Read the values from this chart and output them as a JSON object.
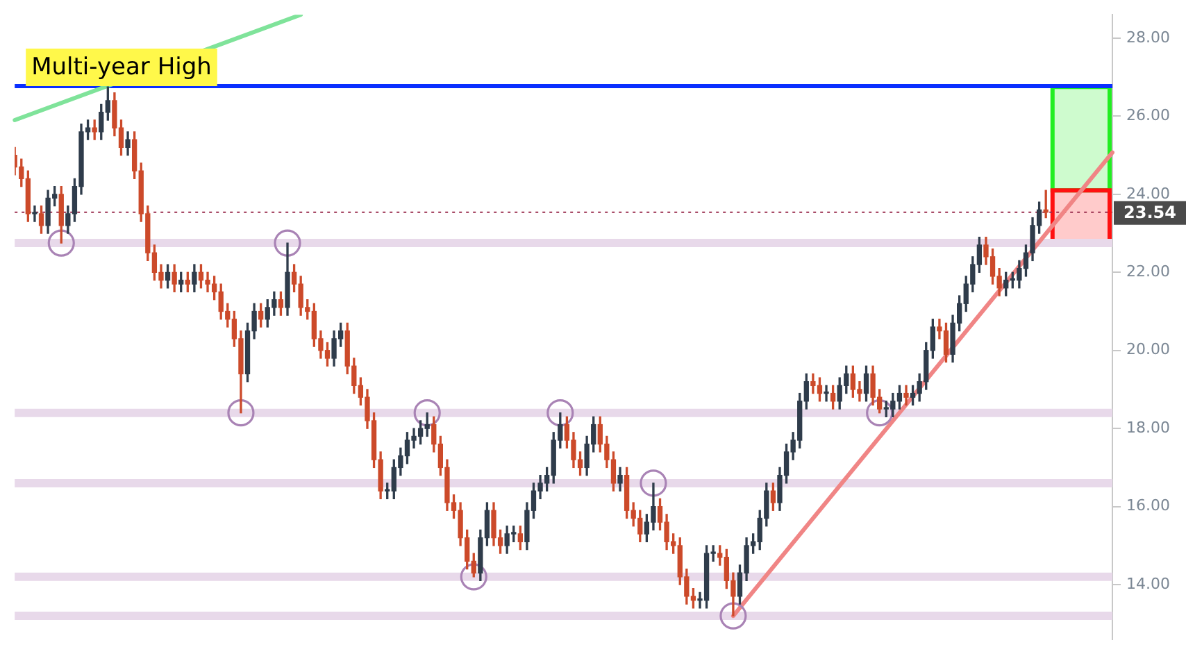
{
  "chart_data": {
    "type": "candlestick",
    "categories": [
      null,
      null,
      null,
      null,
      null,
      null,
      null,
      null,
      null,
      null,
      null,
      null,
      null,
      null,
      null,
      null,
      null,
      null,
      null,
      null,
      null,
      null,
      null,
      null,
      null,
      null,
      null,
      null,
      null,
      null,
      null,
      null,
      null,
      null,
      null,
      null,
      null,
      null,
      null,
      null,
      null,
      null,
      null,
      null,
      null,
      null,
      null,
      null,
      null,
      null,
      null,
      null,
      null,
      null,
      null,
      null,
      null,
      null,
      null,
      null,
      null,
      null,
      null,
      null,
      null,
      null,
      null,
      null,
      null,
      null,
      null,
      null,
      null,
      null,
      null,
      null,
      null,
      null,
      null,
      null,
      null,
      null,
      null,
      null,
      null,
      null,
      null,
      null,
      null,
      null,
      null,
      null,
      null,
      null,
      null,
      null,
      null,
      null,
      null,
      null,
      null,
      null,
      null,
      null,
      null,
      null,
      null,
      null,
      null,
      null,
      null,
      null,
      null,
      null,
      null,
      null,
      null,
      null,
      null,
      null,
      null,
      null,
      null,
      null,
      null,
      null,
      null,
      null,
      null,
      null,
      null,
      null,
      null,
      null,
      null,
      null,
      null,
      null,
      null,
      null,
      null,
      null,
      null,
      null,
      null,
      null,
      null,
      null,
      null,
      null,
      null,
      null,
      null,
      null,
      null,
      null,
      null,
      null,
      null,
      null,
      null,
      null,
      null,
      null,
      null,
      null
    ],
    "ohlc": [
      [
        25.0,
        25.2,
        24.5,
        24.7
      ],
      [
        24.7,
        24.9,
        24.2,
        24.4
      ],
      [
        24.4,
        24.6,
        23.3,
        23.5
      ],
      [
        23.5,
        23.7,
        23.3,
        23.5
      ],
      [
        23.5,
        23.7,
        23.0,
        23.2
      ],
      [
        23.2,
        24.1,
        23.0,
        23.9
      ],
      [
        23.9,
        24.2,
        23.7,
        24.0
      ],
      [
        24.0,
        24.2,
        22.75,
        23.2
      ],
      [
        23.2,
        23.7,
        23.0,
        23.5
      ],
      [
        23.5,
        24.4,
        23.3,
        24.2
      ],
      [
        24.2,
        25.8,
        24.0,
        25.6
      ],
      [
        25.6,
        25.9,
        25.4,
        25.7
      ],
      [
        25.7,
        25.9,
        25.4,
        25.6
      ],
      [
        25.6,
        26.3,
        25.4,
        26.1
      ],
      [
        26.1,
        26.75,
        25.9,
        26.4
      ],
      [
        26.4,
        26.6,
        25.5,
        25.7
      ],
      [
        25.7,
        25.9,
        25.0,
        25.2
      ],
      [
        25.2,
        25.6,
        25.0,
        25.4
      ],
      [
        25.4,
        25.6,
        24.4,
        24.6
      ],
      [
        24.6,
        24.8,
        23.3,
        23.5
      ],
      [
        23.5,
        23.7,
        22.3,
        22.5
      ],
      [
        22.5,
        22.7,
        21.8,
        22.0
      ],
      [
        22.0,
        22.2,
        21.6,
        21.8
      ],
      [
        21.8,
        22.2,
        21.6,
        22.0
      ],
      [
        22.0,
        22.2,
        21.5,
        21.7
      ],
      [
        21.7,
        22.0,
        21.5,
        21.8
      ],
      [
        21.8,
        22.0,
        21.5,
        21.7
      ],
      [
        21.7,
        22.2,
        21.5,
        22.0
      ],
      [
        22.0,
        22.2,
        21.6,
        21.8
      ],
      [
        21.8,
        22.0,
        21.5,
        21.7
      ],
      [
        21.7,
        21.9,
        21.3,
        21.5
      ],
      [
        21.5,
        21.7,
        20.8,
        21.0
      ],
      [
        21.0,
        21.2,
        20.6,
        20.8
      ],
      [
        20.8,
        21.0,
        20.1,
        20.3
      ],
      [
        20.3,
        20.5,
        18.4,
        19.4
      ],
      [
        19.4,
        20.7,
        19.2,
        20.5
      ],
      [
        20.5,
        21.2,
        20.3,
        21.0
      ],
      [
        21.0,
        21.2,
        20.6,
        20.8
      ],
      [
        20.8,
        21.3,
        20.6,
        21.1
      ],
      [
        21.1,
        21.5,
        20.9,
        21.3
      ],
      [
        21.3,
        21.5,
        20.9,
        21.1
      ],
      [
        21.1,
        22.75,
        20.9,
        22.0
      ],
      [
        22.0,
        22.2,
        21.5,
        21.7
      ],
      [
        21.7,
        21.9,
        20.9,
        21.1
      ],
      [
        21.1,
        21.3,
        20.8,
        21.0
      ],
      [
        21.0,
        21.2,
        20.1,
        20.3
      ],
      [
        20.3,
        20.5,
        19.8,
        20.0
      ],
      [
        20.0,
        20.2,
        19.6,
        19.8
      ],
      [
        19.8,
        20.5,
        19.6,
        20.3
      ],
      [
        20.3,
        20.7,
        20.1,
        20.5
      ],
      [
        20.5,
        20.7,
        19.4,
        19.6
      ],
      [
        19.6,
        19.8,
        18.9,
        19.1
      ],
      [
        19.1,
        19.3,
        18.6,
        18.8
      ],
      [
        18.8,
        19.0,
        18.0,
        18.2
      ],
      [
        18.2,
        18.4,
        17.0,
        17.2
      ],
      [
        17.2,
        17.4,
        16.2,
        16.4
      ],
      [
        16.4,
        16.6,
        16.2,
        16.4
      ],
      [
        16.4,
        17.2,
        16.2,
        17.0
      ],
      [
        17.0,
        17.5,
        16.8,
        17.3
      ],
      [
        17.3,
        17.9,
        17.1,
        17.7
      ],
      [
        17.7,
        18.0,
        17.5,
        17.8
      ],
      [
        17.8,
        18.2,
        17.6,
        18.0
      ],
      [
        18.0,
        18.4,
        17.8,
        18.1
      ],
      [
        18.1,
        18.3,
        17.4,
        17.6
      ],
      [
        17.6,
        17.8,
        16.8,
        17.0
      ],
      [
        17.0,
        17.2,
        15.9,
        16.1
      ],
      [
        16.1,
        16.3,
        15.7,
        15.9
      ],
      [
        15.9,
        16.1,
        15.0,
        15.2
      ],
      [
        15.2,
        15.4,
        14.4,
        14.6
      ],
      [
        14.6,
        14.8,
        14.2,
        14.3
      ],
      [
        14.3,
        15.4,
        14.1,
        15.2
      ],
      [
        15.2,
        16.1,
        15.0,
        15.9
      ],
      [
        15.9,
        16.1,
        15.0,
        15.2
      ],
      [
        15.2,
        15.4,
        14.8,
        15.0
      ],
      [
        15.0,
        15.5,
        14.8,
        15.3
      ],
      [
        15.3,
        15.5,
        15.1,
        15.3
      ],
      [
        15.3,
        15.5,
        14.9,
        15.1
      ],
      [
        15.1,
        16.1,
        14.9,
        15.9
      ],
      [
        15.9,
        16.6,
        15.7,
        16.4
      ],
      [
        16.4,
        16.8,
        16.2,
        16.6
      ],
      [
        16.6,
        17.0,
        16.4,
        16.8
      ],
      [
        16.8,
        17.9,
        16.6,
        17.7
      ],
      [
        17.7,
        18.4,
        17.5,
        18.1
      ],
      [
        18.1,
        18.3,
        17.5,
        17.7
      ],
      [
        17.7,
        17.9,
        17.0,
        17.2
      ],
      [
        17.2,
        17.4,
        16.8,
        17.0
      ],
      [
        17.0,
        17.8,
        16.8,
        17.6
      ],
      [
        17.6,
        18.3,
        17.4,
        18.1
      ],
      [
        18.1,
        18.3,
        17.4,
        17.6
      ],
      [
        17.6,
        17.8,
        17.0,
        17.2
      ],
      [
        17.2,
        17.4,
        16.4,
        16.6
      ],
      [
        16.6,
        17.0,
        16.4,
        16.8
      ],
      [
        16.8,
        17.0,
        15.7,
        15.9
      ],
      [
        15.9,
        16.1,
        15.5,
        15.7
      ],
      [
        15.7,
        15.9,
        15.1,
        15.3
      ],
      [
        15.3,
        15.8,
        15.1,
        15.6
      ],
      [
        15.6,
        16.6,
        15.4,
        16.0
      ],
      [
        16.0,
        16.2,
        15.4,
        15.6
      ],
      [
        15.6,
        15.8,
        14.9,
        15.1
      ],
      [
        15.1,
        15.3,
        14.8,
        15.0
      ],
      [
        15.0,
        15.2,
        14.0,
        14.2
      ],
      [
        14.2,
        14.4,
        13.5,
        13.7
      ],
      [
        13.7,
        13.9,
        13.4,
        13.6
      ],
      [
        13.6,
        13.8,
        13.4,
        13.6
      ],
      [
        13.6,
        15.0,
        13.4,
        14.8
      ],
      [
        14.8,
        15.0,
        14.6,
        14.8
      ],
      [
        14.8,
        15.0,
        14.5,
        14.7
      ],
      [
        14.7,
        14.9,
        13.9,
        14.1
      ],
      [
        14.1,
        14.3,
        13.2,
        13.7
      ],
      [
        13.7,
        14.5,
        13.5,
        14.3
      ],
      [
        14.3,
        15.2,
        14.1,
        15.0
      ],
      [
        15.0,
        15.3,
        14.8,
        15.1
      ],
      [
        15.1,
        15.9,
        14.9,
        15.7
      ],
      [
        15.7,
        16.6,
        15.5,
        16.4
      ],
      [
        16.4,
        16.6,
        15.9,
        16.1
      ],
      [
        16.1,
        17.0,
        15.9,
        16.8
      ],
      [
        16.8,
        17.6,
        16.6,
        17.4
      ],
      [
        17.4,
        17.9,
        17.2,
        17.7
      ],
      [
        17.7,
        18.9,
        17.5,
        18.7
      ],
      [
        18.7,
        19.4,
        18.5,
        19.2
      ],
      [
        19.2,
        19.4,
        18.9,
        19.1
      ],
      [
        19.1,
        19.3,
        18.7,
        18.9
      ],
      [
        18.9,
        19.1,
        18.7,
        18.9
      ],
      [
        18.9,
        19.1,
        18.5,
        18.7
      ],
      [
        18.7,
        19.3,
        18.5,
        19.1
      ],
      [
        19.1,
        19.6,
        18.9,
        19.4
      ],
      [
        19.4,
        19.6,
        18.8,
        19.0
      ],
      [
        19.0,
        19.2,
        18.7,
        18.9
      ],
      [
        18.9,
        19.6,
        18.7,
        19.4
      ],
      [
        19.4,
        19.6,
        18.6,
        18.8
      ],
      [
        18.8,
        19.0,
        18.4,
        18.5
      ],
      [
        18.5,
        18.7,
        18.3,
        18.5
      ],
      [
        18.5,
        18.9,
        18.3,
        18.7
      ],
      [
        18.7,
        19.1,
        18.5,
        18.9
      ],
      [
        18.9,
        19.1,
        18.6,
        18.8
      ],
      [
        18.8,
        19.1,
        18.6,
        18.9
      ],
      [
        18.9,
        19.4,
        18.7,
        19.2
      ],
      [
        19.2,
        20.2,
        19.0,
        20.0
      ],
      [
        20.0,
        20.8,
        19.8,
        20.6
      ],
      [
        20.6,
        20.8,
        20.3,
        20.5
      ],
      [
        20.5,
        20.7,
        19.7,
        19.9
      ],
      [
        19.9,
        20.9,
        19.7,
        20.7
      ],
      [
        20.7,
        21.4,
        20.5,
        21.2
      ],
      [
        21.2,
        21.9,
        21.0,
        21.7
      ],
      [
        21.7,
        22.4,
        21.5,
        22.2
      ],
      [
        22.2,
        22.9,
        22.0,
        22.7
      ],
      [
        22.7,
        22.9,
        22.2,
        22.4
      ],
      [
        22.4,
        22.6,
        21.7,
        21.9
      ],
      [
        21.9,
        22.1,
        21.4,
        21.6
      ],
      [
        21.6,
        22.0,
        21.4,
        21.8
      ],
      [
        21.8,
        22.0,
        21.6,
        21.8
      ],
      [
        21.8,
        22.3,
        21.6,
        22.1
      ],
      [
        22.1,
        22.7,
        21.9,
        22.5
      ],
      [
        22.5,
        23.4,
        22.3,
        23.2
      ],
      [
        23.2,
        23.8,
        23.0,
        23.6
      ],
      [
        23.6,
        24.1,
        23.4,
        23.54
      ],
      null,
      null,
      null,
      null,
      null,
      null,
      null,
      null,
      null,
      null
    ],
    "colors": [
      "#cc4a2a",
      "#cc4a2a",
      "#cc4a2a",
      "#2f3c4b",
      "#cc4a2a",
      "#2f3c4b",
      "#2f3c4b",
      "#cc4a2a",
      "#2f3c4b",
      "#2f3c4b",
      "#2f3c4b",
      "#2f3c4b",
      "#cc4a2a",
      "#2f3c4b",
      "#2f3c4b",
      "#cc4a2a",
      "#cc4a2a",
      "#2f3c4b",
      "#cc4a2a",
      "#cc4a2a",
      "#cc4a2a",
      "#cc4a2a",
      "#cc4a2a",
      "#2f3c4b",
      "#cc4a2a",
      "#2f3c4b",
      "#cc4a2a",
      "#2f3c4b",
      "#cc4a2a",
      "#cc4a2a",
      "#cc4a2a",
      "#cc4a2a",
      "#cc4a2a",
      "#cc4a2a",
      "#cc4a2a",
      "#2f3c4b",
      "#2f3c4b",
      "#cc4a2a",
      "#2f3c4b",
      "#2f3c4b",
      "#cc4a2a",
      "#2f3c4b",
      "#cc4a2a",
      "#cc4a2a",
      "#cc4a2a",
      "#cc4a2a",
      "#cc4a2a",
      "#cc4a2a",
      "#2f3c4b",
      "#2f3c4b",
      "#cc4a2a",
      "#cc4a2a",
      "#cc4a2a",
      "#cc4a2a",
      "#cc4a2a",
      "#cc4a2a",
      "#2f3c4b",
      "#2f3c4b",
      "#2f3c4b",
      "#2f3c4b",
      "#2f3c4b",
      "#2f3c4b",
      "#2f3c4b",
      "#cc4a2a",
      "#cc4a2a",
      "#cc4a2a",
      "#cc4a2a",
      "#cc4a2a",
      "#cc4a2a",
      "#cc4a2a",
      "#2f3c4b",
      "#2f3c4b",
      "#cc4a2a",
      "#cc4a2a",
      "#2f3c4b",
      "#2f3c4b",
      "#cc4a2a",
      "#2f3c4b",
      "#2f3c4b",
      "#2f3c4b",
      "#2f3c4b",
      "#2f3c4b",
      "#2f3c4b",
      "#cc4a2a",
      "#cc4a2a",
      "#cc4a2a",
      "#2f3c4b",
      "#2f3c4b",
      "#cc4a2a",
      "#cc4a2a",
      "#cc4a2a",
      "#2f3c4b",
      "#cc4a2a",
      "#cc4a2a",
      "#cc4a2a",
      "#2f3c4b",
      "#2f3c4b",
      "#cc4a2a",
      "#cc4a2a",
      "#cc4a2a",
      "#cc4a2a",
      "#cc4a2a",
      "#cc4a2a",
      "#2f3c4b",
      "#2f3c4b",
      "#2f3c4b",
      "#cc4a2a",
      "#cc4a2a",
      "#cc4a2a",
      "#2f3c4b",
      "#2f3c4b",
      "#2f3c4b",
      "#2f3c4b",
      "#2f3c4b",
      "#cc4a2a",
      "#2f3c4b",
      "#2f3c4b",
      "#2f3c4b",
      "#2f3c4b",
      "#2f3c4b",
      "#cc4a2a",
      "#cc4a2a",
      "#2f3c4b",
      "#cc4a2a",
      "#2f3c4b",
      "#2f3c4b",
      "#cc4a2a",
      "#cc4a2a",
      "#2f3c4b",
      "#cc4a2a",
      "#cc4a2a",
      "#2f3c4b",
      "#2f3c4b",
      "#2f3c4b",
      "#cc4a2a",
      "#2f3c4b",
      "#2f3c4b",
      "#2f3c4b",
      "#2f3c4b",
      "#cc4a2a",
      "#cc4a2a",
      "#2f3c4b",
      "#2f3c4b",
      "#2f3c4b",
      "#2f3c4b",
      "#2f3c4b",
      "#cc4a2a",
      "#cc4a2a",
      "#cc4a2a",
      "#2f3c4b",
      "#2f3c4b",
      "#2f3c4b",
      "#2f3c4b",
      "#2f3c4b",
      "#2f3c4b",
      "#cc4a2a",
      null,
      null,
      null,
      null,
      null,
      null,
      null,
      null,
      null,
      null
    ],
    "series": [
      {
        "type": "line",
        "color": "#7fe39a",
        "values": [
          25.9,
          null,
          null,
          null,
          null,
          null,
          null,
          null,
          null,
          null,
          null,
          null,
          null,
          null,
          null,
          null,
          null,
          null,
          null,
          null,
          null,
          null,
          null,
          null,
          null,
          null,
          null,
          null,
          null,
          null,
          null,
          null,
          null,
          null,
          null,
          null,
          null,
          null,
          null,
          null,
          null,
          null,
          null,
          28.6,
          null,
          null,
          null,
          null,
          null,
          null,
          null,
          null,
          null,
          null,
          null,
          null,
          null,
          null,
          null,
          null,
          null,
          null,
          null,
          null,
          null,
          null,
          null,
          null,
          null,
          null,
          null,
          null,
          null,
          null,
          null,
          null,
          null,
          null,
          null,
          null,
          null,
          null,
          null,
          null,
          null,
          null,
          null,
          null,
          null,
          null,
          null,
          null,
          null,
          null,
          null,
          null,
          null,
          null,
          null,
          null,
          null,
          null,
          null,
          null,
          null,
          null,
          null,
          null,
          null,
          null,
          null,
          null,
          null,
          null,
          null,
          null,
          null,
          null,
          null,
          null,
          null,
          null,
          null,
          null,
          null,
          null,
          null,
          null,
          null,
          null,
          null,
          null,
          null,
          null,
          null,
          null,
          null,
          null,
          null,
          null,
          null,
          null,
          null,
          null,
          null,
          null,
          null,
          null,
          null,
          null,
          null,
          null,
          null,
          null,
          null,
          null,
          null,
          null,
          null,
          null,
          null,
          null,
          null,
          null,
          null,
          null
        ]
      },
      {
        "type": "line",
        "color": "#f08585",
        "values": [
          null,
          null,
          null,
          null,
          null,
          null,
          null,
          null,
          null,
          null,
          null,
          null,
          null,
          null,
          null,
          null,
          null,
          null,
          null,
          null,
          null,
          null,
          null,
          null,
          null,
          null,
          null,
          null,
          null,
          null,
          null,
          null,
          null,
          null,
          null,
          null,
          null,
          null,
          null,
          null,
          null,
          null,
          null,
          null,
          null,
          null,
          null,
          null,
          null,
          null,
          null,
          null,
          null,
          null,
          null,
          null,
          null,
          null,
          null,
          null,
          null,
          null,
          null,
          null,
          null,
          null,
          null,
          null,
          null,
          null,
          null,
          null,
          null,
          null,
          null,
          null,
          null,
          null,
          null,
          null,
          null,
          null,
          null,
          null,
          null,
          null,
          null,
          null,
          null,
          null,
          null,
          null,
          null,
          null,
          null,
          null,
          null,
          null,
          null,
          null,
          null,
          null,
          null,
          null,
          null,
          null,
          null,
          null,
          13.2,
          null,
          null,
          null,
          null,
          null,
          null,
          null,
          null,
          null,
          null,
          null,
          null,
          null,
          null,
          null,
          null,
          null,
          null,
          null,
          null,
          null,
          null,
          null,
          null,
          null,
          null,
          null,
          null,
          null,
          null,
          null,
          null,
          null,
          null,
          null,
          null,
          null,
          null,
          null,
          null,
          null,
          null,
          null,
          null,
          null,
          null,
          null,
          null,
          null,
          null,
          null,
          null,
          null,
          null,
          null,
          null,
          25.07
        ]
      },
      {
        "type": "scatter",
        "color": "#a983b5",
        "marker": "circle",
        "values": [
          null,
          null,
          null,
          null,
          null,
          null,
          null,
          22.75,
          null,
          null,
          null,
          null,
          null,
          null,
          null,
          null,
          null,
          null,
          null,
          null,
          null,
          null,
          null,
          null,
          null,
          null,
          null,
          null,
          null,
          null,
          null,
          null,
          null,
          null,
          18.4,
          null,
          null,
          null,
          null,
          null,
          null,
          22.75,
          null,
          null,
          null,
          null,
          null,
          null,
          null,
          null,
          null,
          null,
          null,
          null,
          null,
          null,
          null,
          null,
          null,
          null,
          null,
          null,
          18.4,
          null,
          null,
          null,
          null,
          null,
          null,
          14.2,
          null,
          null,
          null,
          null,
          null,
          null,
          null,
          null,
          null,
          null,
          null,
          null,
          18.4,
          null,
          null,
          null,
          null,
          null,
          null,
          null,
          null,
          null,
          null,
          null,
          null,
          null,
          16.6,
          null,
          null,
          null,
          null,
          null,
          null,
          null,
          null,
          null,
          null,
          null,
          13.2,
          null,
          null,
          null,
          null,
          null,
          null,
          null,
          null,
          null,
          null,
          null,
          null,
          null,
          null,
          null,
          null,
          null,
          null,
          null,
          null,
          null,
          18.4,
          null,
          null,
          null,
          null,
          null,
          null,
          null,
          null,
          null,
          null,
          null,
          null,
          null,
          null,
          null,
          null,
          null,
          null,
          null,
          null,
          null,
          null,
          null,
          null,
          null,
          null,
          null,
          null,
          null,
          null,
          null,
          null,
          null,
          null,
          null
        ]
      }
    ],
    "ref_lines": [
      {
        "axis": "y",
        "value": 26.77,
        "label": "Multi-year High",
        "color": "#0a2fff",
        "line_style": "solid"
      },
      {
        "axis": "y",
        "value": 23.54,
        "label": "23.54",
        "color": "#9b3050",
        "line_style": "dotted"
      },
      {
        "axis": "y",
        "value": 22.75,
        "color": "#e8d9ea",
        "line_style": "solid"
      },
      {
        "axis": "y",
        "value": 18.4,
        "color": "#e8d9ea",
        "line_style": "solid"
      },
      {
        "axis": "y",
        "value": 16.6,
        "color": "#e8d9ea",
        "line_style": "solid"
      },
      {
        "axis": "y",
        "value": 14.2,
        "color": "#e8d9ea",
        "line_style": "solid"
      },
      {
        "axis": "y",
        "value": 13.2,
        "color": "#e8d9ea",
        "line_style": "solid"
      }
    ],
    "bands": [
      {
        "axis": "y",
        "from": 24.1,
        "to": 26.75,
        "color": "#22ee22"
      },
      {
        "axis": "y",
        "from": 22.7,
        "to": 24.1,
        "color": "#ff1111"
      }
    ],
    "ylim": [
      12.6,
      28.6
    ],
    "yticks": [
      {
        "value": 14,
        "label": "14.00"
      },
      {
        "value": 16,
        "label": "16.00"
      },
      {
        "value": 18,
        "label": "18.00"
      },
      {
        "value": 20,
        "label": "20.00"
      },
      {
        "value": 22,
        "label": "22.00"
      },
      {
        "value": 24,
        "label": "24.00"
      },
      {
        "value": 26,
        "label": "26.00"
      },
      {
        "value": 28,
        "label": "28.00"
      }
    ],
    "tick_labels": "y",
    "grid": false,
    "legend": false
  }
}
